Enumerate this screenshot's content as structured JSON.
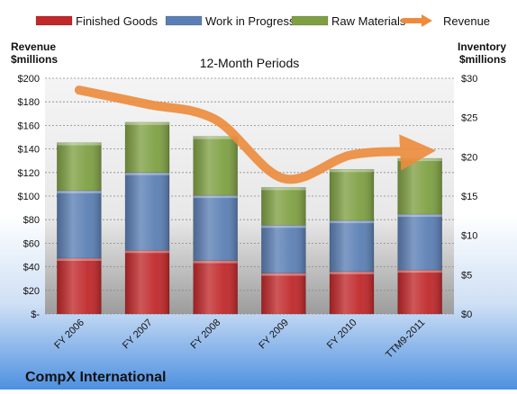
{
  "chart_data": {
    "type": "bar",
    "stacked": true,
    "title": "12-Month Periods",
    "company": "CompX International",
    "left_axis_label": [
      "Revenue",
      "$millions"
    ],
    "right_axis_label": [
      "Inventory",
      "$millions"
    ],
    "categories": [
      "FY 2006",
      "FY 2007",
      "FY 2008",
      "FY 2009",
      "FY 2010",
      "TTM9-2011"
    ],
    "left_ticks": [
      "$-",
      "$20",
      "$40",
      "$60",
      "$80",
      "$100",
      "$120",
      "$140",
      "$160",
      "$180",
      "$200"
    ],
    "right_ticks": [
      "$0",
      "$5",
      "$10",
      "$15",
      "$20",
      "$25",
      "$30"
    ],
    "ylim_left": [
      0,
      200
    ],
    "ylim_right": [
      0,
      30
    ],
    "grid": true,
    "legend_position": "top",
    "series": [
      {
        "name": "Finished Goods",
        "axis": "right",
        "color": "#c0282a",
        "values": [
          7.1,
          8.1,
          6.8,
          5.2,
          5.4,
          5.6
        ]
      },
      {
        "name": "Work in Progress",
        "axis": "right",
        "color": "#5b7fb4",
        "values": [
          8.6,
          9.9,
          8.3,
          6.1,
          6.5,
          7.1
        ]
      },
      {
        "name": "Raw Materials",
        "axis": "right",
        "color": "#7ea043",
        "values": [
          6.1,
          6.4,
          7.5,
          4.8,
          6.5,
          7.1
        ]
      },
      {
        "name": "Revenue",
        "axis": "left",
        "type": "line",
        "color": "#ed8b3c",
        "values": [
          190,
          178,
          165,
          115,
          135,
          138
        ]
      }
    ]
  }
}
